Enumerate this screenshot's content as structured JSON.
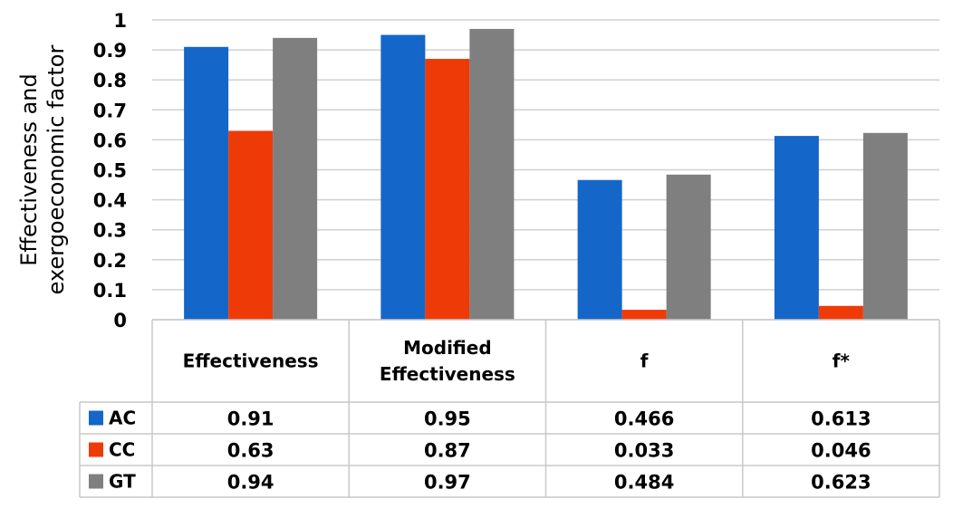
{
  "chart_data": {
    "type": "bar",
    "title": "",
    "xlabel": "",
    "ylabel_lines": [
      "Effectiveness and",
      "exergoeconomic factor"
    ],
    "ylim": [
      0,
      1
    ],
    "yticks": [
      "0",
      "0.1",
      "0.2",
      "0.3",
      "0.4",
      "0.5",
      "0.6",
      "0.7",
      "0.8",
      "0.9",
      "1"
    ],
    "grid": true,
    "legend": "data-table",
    "categories": [
      [
        "Effectiveness"
      ],
      [
        "Modified",
        "Effectiveness"
      ],
      [
        "f"
      ],
      [
        "f*"
      ]
    ],
    "series": [
      {
        "name": "AC",
        "color": "#1466c8",
        "values": [
          0.91,
          0.95,
          0.466,
          0.613
        ],
        "labels": [
          "0.91",
          "0.95",
          "0.466",
          "0.613"
        ]
      },
      {
        "name": "CC",
        "color": "#ee3a07",
        "values": [
          0.63,
          0.87,
          0.033,
          0.046
        ],
        "labels": [
          "0.63",
          "0.87",
          "0.033",
          "0.046"
        ]
      },
      {
        "name": "GT",
        "color": "#7f7f7f",
        "values": [
          0.94,
          0.97,
          0.484,
          0.623
        ],
        "labels": [
          "0.94",
          "0.97",
          "0.484",
          "0.623"
        ]
      }
    ]
  }
}
